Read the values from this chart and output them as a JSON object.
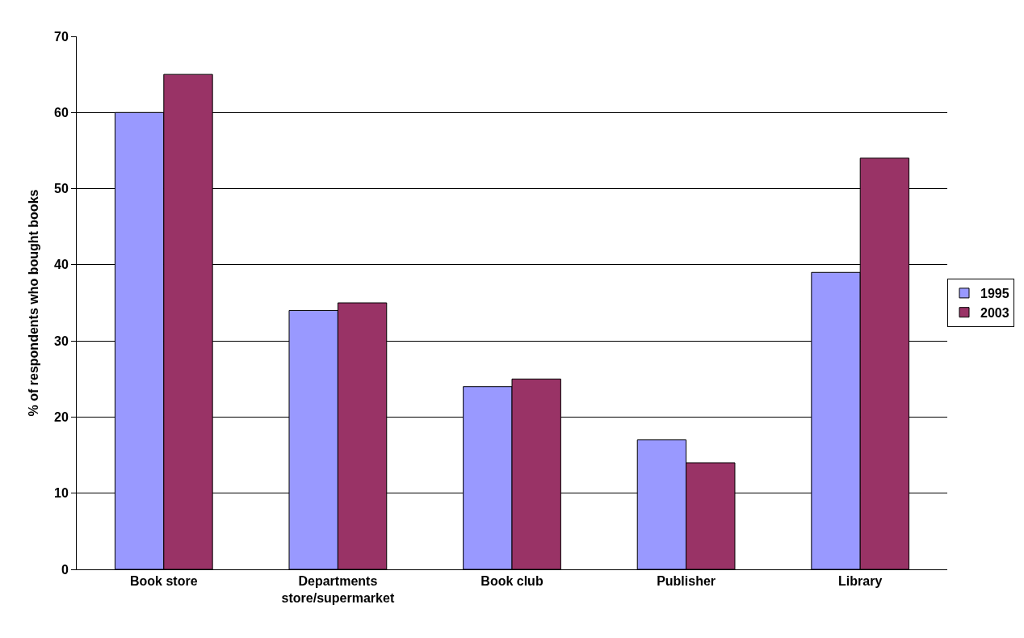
{
  "chart_data": {
    "type": "bar",
    "ylabel": "% of respondents who bought books",
    "categories": [
      "Book store",
      "Departments\nstore/supermarket",
      "Book club",
      "Publisher",
      "Library"
    ],
    "series": [
      {
        "name": "1995",
        "color": "#9999ff",
        "values": [
          60,
          34,
          24,
          17,
          39
        ]
      },
      {
        "name": "2003",
        "color": "#993366",
        "values": [
          65,
          35,
          25,
          14,
          54
        ]
      }
    ],
    "ylim": [
      0,
      70
    ],
    "yticks": [
      0,
      10,
      20,
      30,
      40,
      50,
      60,
      70
    ],
    "grid": "y",
    "legend": "right"
  }
}
